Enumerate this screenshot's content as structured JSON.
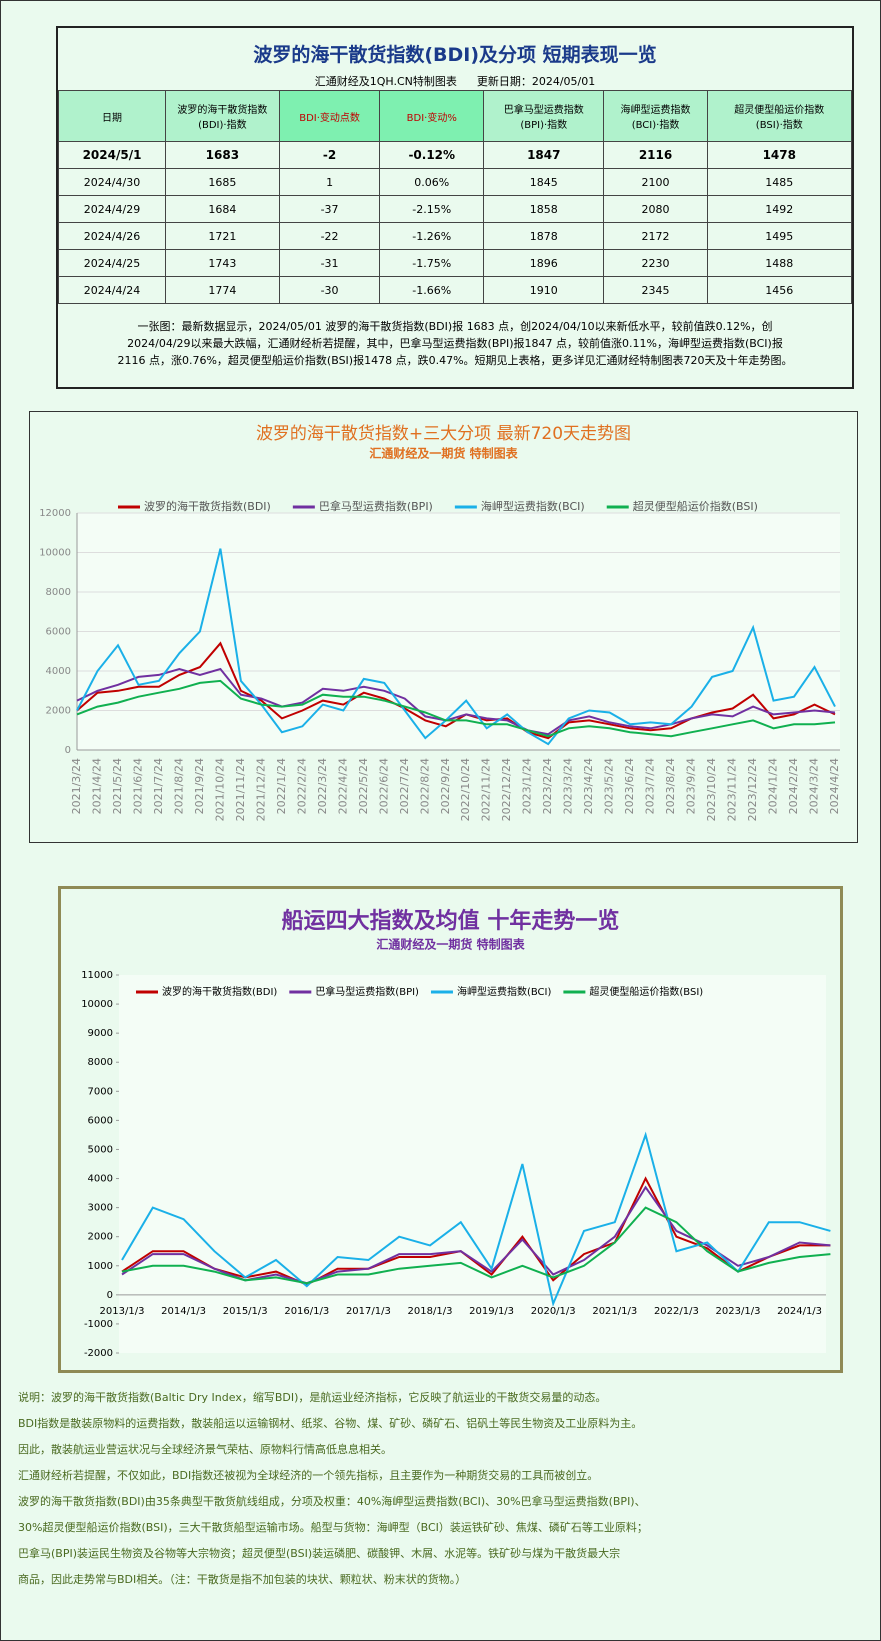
{
  "summary": {
    "title": "波罗的海干散货指数(BDI)及分项 短期表现一览",
    "subtitle": "汇通财经及1QH.CN特制图表",
    "update": "更新日期：2024/05/01",
    "table": {
      "columns": [
        [
          "日期"
        ],
        [
          "波罗的海干散货指数",
          "(BDI)·指数"
        ],
        [
          "BDI·变动点数"
        ],
        [
          "BDI·变动%"
        ],
        [
          "巴拿马型运费指数",
          "(BPI)·指数"
        ],
        [
          "海岬型运费指数",
          "(BCI)·指数"
        ],
        [
          "超灵便型船运价指数",
          "(BSI)·指数"
        ]
      ],
      "rows": [
        [
          "2024/5/1",
          "1683",
          "-2",
          "-0.12%",
          "1847",
          "2116",
          "1478"
        ],
        [
          "2024/4/30",
          "1685",
          "1",
          "0.06%",
          "1845",
          "2100",
          "1485"
        ],
        [
          "2024/4/29",
          "1684",
          "-37",
          "-2.15%",
          "1858",
          "2080",
          "1492"
        ],
        [
          "2024/4/26",
          "1721",
          "-22",
          "-1.26%",
          "1878",
          "2172",
          "1495"
        ],
        [
          "2024/4/25",
          "1743",
          "-31",
          "-1.75%",
          "1896",
          "2230",
          "1488"
        ],
        [
          "2024/4/24",
          "1774",
          "-30",
          "-1.66%",
          "1910",
          "2345",
          "1456"
        ]
      ]
    },
    "note": [
      "一张图：最新数据显示，2024/05/01 波罗的海干散货指数(BDI)报 1683 点，创2024/04/10以来新低水平，较前值跌0.12%，创",
      "2024/04/29以来最大跌幅，汇通财经析若提醒，其中，巴拿马型运费指数(BPI)报1847 点，较前值涨0.11%，海岬型运费指数(BCI)报",
      "2116 点，涨0.76%，超灵便型船运价指数(BSI)报1478 点，跌0.47%。短期见上表格，更多详见汇通财经特制图表720天及十年走势图。"
    ]
  },
  "chart_data": [
    {
      "type": "line",
      "title": "波罗的海干散货指数+三大分项  最新720天走势图",
      "subtitle": "汇通财经及一期货  特制图表",
      "grid": true,
      "categories": [
        "2021/3/24",
        "2021/4/24",
        "2021/5/24",
        "2021/6/24",
        "2021/7/24",
        "2021/8/24",
        "2021/9/24",
        "2021/10/24",
        "2021/11/24",
        "2021/12/24",
        "2022/1/24",
        "2022/2/24",
        "2022/3/24",
        "2022/4/24",
        "2022/5/24",
        "2022/6/24",
        "2022/7/24",
        "2022/8/24",
        "2022/9/24",
        "2022/10/24",
        "2022/11/24",
        "2022/12/24",
        "2023/1/24",
        "2023/2/24",
        "2023/3/24",
        "2023/4/24",
        "2023/5/24",
        "2023/6/24",
        "2023/7/24",
        "2023/8/24",
        "2023/9/24",
        "2023/10/24",
        "2023/11/24",
        "2023/12/24",
        "2024/1/24",
        "2024/2/24",
        "2024/3/24",
        "2024/4/24"
      ],
      "ylim": [
        0,
        12000
      ],
      "yticks": [
        0,
        2000,
        4000,
        6000,
        8000,
        10000,
        12000
      ],
      "series": [
        {
          "name": "波罗的海干散货指数(BDI)",
          "color": "#c00000",
          "values": [
            2000,
            2900,
            3000,
            3200,
            3200,
            3800,
            4200,
            5400,
            3000,
            2500,
            1600,
            2000,
            2500,
            2300,
            2900,
            2600,
            2100,
            1500,
            1200,
            1800,
            1500,
            1600,
            900,
            600,
            1400,
            1500,
            1300,
            1100,
            1000,
            1100,
            1600,
            1900,
            2100,
            2800,
            1600,
            1800,
            2300,
            1800
          ]
        },
        {
          "name": "巴拿马型运费指数(BPI)",
          "color": "#7030a0",
          "values": [
            2500,
            3000,
            3300,
            3700,
            3800,
            4100,
            3800,
            4100,
            2800,
            2600,
            2200,
            2400,
            3100,
            3000,
            3200,
            3000,
            2600,
            1700,
            1500,
            1800,
            1600,
            1500,
            1000,
            800,
            1500,
            1700,
            1400,
            1200,
            1100,
            1300,
            1600,
            1800,
            1700,
            2200,
            1800,
            1900,
            2000,
            1900
          ]
        },
        {
          "name": "海岬型运费指数(BCI)",
          "color": "#1ab0e8",
          "values": [
            2000,
            4000,
            5300,
            3300,
            3500,
            4900,
            6000,
            10200,
            3500,
            2300,
            900,
            1200,
            2300,
            2000,
            3600,
            3400,
            2000,
            600,
            1500,
            2500,
            1100,
            1800,
            900,
            300,
            1600,
            2000,
            1900,
            1300,
            1400,
            1300,
            2200,
            3700,
            4000,
            6200,
            2500,
            2700,
            4200,
            2200
          ]
        },
        {
          "name": "超灵便型船运价指数(BSI)",
          "color": "#10b050",
          "values": [
            1800,
            2200,
            2400,
            2700,
            2900,
            3100,
            3400,
            3500,
            2600,
            2300,
            2200,
            2300,
            2800,
            2700,
            2700,
            2500,
            2200,
            1900,
            1500,
            1500,
            1300,
            1300,
            1000,
            700,
            1100,
            1200,
            1100,
            900,
            800,
            700,
            900,
            1100,
            1300,
            1500,
            1100,
            1300,
            1300,
            1400
          ]
        }
      ]
    },
    {
      "type": "line",
      "title": "船运四大指数及均值 十年走势一览",
      "subtitle": "汇通财经及一期货 特制图表",
      "grid": false,
      "categories": [
        "2013/1/3",
        null,
        "2014/1/3",
        null,
        "2015/1/3",
        null,
        "2016/1/3",
        null,
        "2017/1/3",
        null,
        "2018/1/3",
        null,
        "2019/1/3",
        null,
        "2020/1/3",
        null,
        "2021/1/3",
        null,
        "2022/1/3",
        null,
        "2023/1/3",
        null,
        "2024/1/3",
        null
      ],
      "ylim": [
        -2000,
        11000
      ],
      "yticks": [
        -2000,
        -1000,
        0,
        1000,
        2000,
        3000,
        4000,
        5000,
        6000,
        7000,
        8000,
        9000,
        10000,
        11000
      ],
      "series": [
        {
          "name": "波罗的海干散货指数(BDI)",
          "color": "#c00000",
          "values": [
            800,
            1500,
            1500,
            900,
            600,
            800,
            350,
            900,
            900,
            1300,
            1300,
            1500,
            700,
            2000,
            500,
            1400,
            1800,
            4000,
            2000,
            1600,
            800,
            1300,
            1700,
            1700
          ]
        },
        {
          "name": "巴拿马型运费指数(BPI)",
          "color": "#7030a0",
          "values": [
            700,
            1400,
            1400,
            900,
            500,
            700,
            400,
            800,
            900,
            1400,
            1400,
            1500,
            800,
            1900,
            700,
            1200,
            2000,
            3700,
            2200,
            1700,
            1000,
            1300,
            1800,
            1700
          ]
        },
        {
          "name": "海岬型运费指数(BCI)",
          "color": "#1ab0e8",
          "values": [
            1200,
            3000,
            2600,
            1500,
            600,
            1200,
            300,
            1300,
            1200,
            2000,
            1700,
            2500,
            900,
            4500,
            -300,
            2200,
            2500,
            5500,
            1500,
            1800,
            800,
            2500,
            2500,
            2200
          ]
        },
        {
          "name": "超灵便型船运价指数(BSI)",
          "color": "#10b050",
          "values": [
            800,
            1000,
            1000,
            800,
            500,
            600,
            400,
            700,
            700,
            900,
            1000,
            1100,
            600,
            1000,
            600,
            1000,
            1800,
            3000,
            2500,
            1500,
            800,
            1100,
            1300,
            1400
          ]
        }
      ]
    }
  ],
  "explanation": [
    "说明：波罗的海干散货指数(Baltic Dry Index，缩写BDI)，是航运业经济指标，它反映了航运业的干散货交易量的动态。",
    "BDI指数是散装原物料的运费指数，散装船运以运输钢材、纸浆、谷物、煤、矿砂、磷矿石、铝矾土等民生物资及工业原料为主。",
    "因此，散装航运业营运状况与全球经济景气荣枯、原物料行情高低息息相关。",
    "汇通财经析若提醒，不仅如此，BDI指数还被视为全球经济的一个领先指标，且主要作为一种期货交易的工具而被创立。",
    "波罗的海干散货指数(BDI)由35条典型干散货航线组成，分项及权重：40%海岬型运费指数(BCI)、30%巴拿马型运费指数(BPI)、",
    "30%超灵便型船运价指数(BSI)，三大干散货船型运输市场。船型与货物：海岬型（BCI）装运铁矿砂、焦煤、磷矿石等工业原料；",
    "巴拿马(BPI)装运民生物资及谷物等大宗物资；超灵便型(BSI)装运磷肥、碳酸钾、木屑、水泥等。铁矿砂与煤为干散货最大宗",
    "商品，因此走势常与BDI相关。（注：干散货是指不加包装的块状、颗粒状、粉末状的货物。）"
  ]
}
